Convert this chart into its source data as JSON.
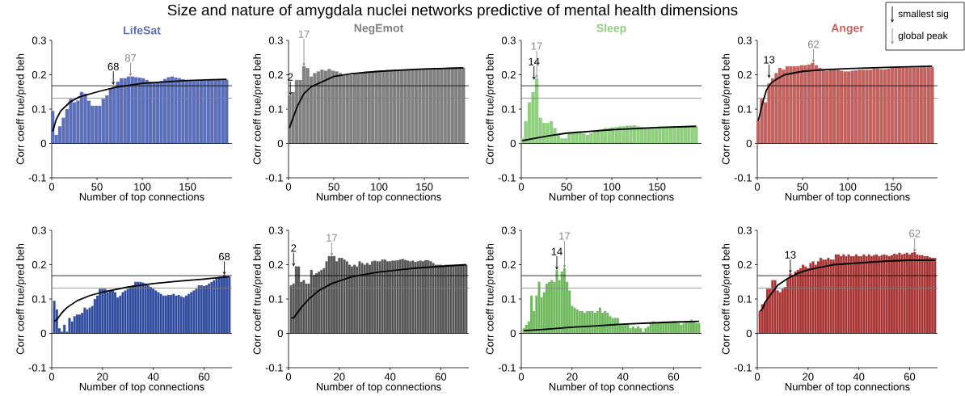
{
  "chart_data": [
    {
      "type": "bar",
      "title": "LifeSat",
      "xlabel": "Number of top connections",
      "ylabel": "Corr coeff true/pred beh",
      "x": [
        1,
        5,
        9,
        13,
        17,
        21,
        25,
        29,
        33,
        37,
        41,
        45,
        49,
        53,
        57,
        61,
        65,
        69,
        73,
        77,
        81,
        85,
        89,
        93,
        97,
        101,
        105,
        109,
        113,
        117,
        121,
        125,
        129,
        133,
        137,
        141,
        145,
        149,
        153,
        157,
        161,
        165,
        169,
        173,
        177,
        181,
        185,
        189,
        193
      ],
      "xlim": [
        0,
        199
      ],
      "xticks": [
        0,
        50,
        100,
        150
      ],
      "ylim": [
        -0.1,
        0.3
      ],
      "yticks": [
        -0.1,
        0,
        0.1,
        0.2,
        0.3
      ],
      "series": [
        {
          "color": "#5b6eb8",
          "values": [
            0.095,
            0.025,
            0.05,
            0.075,
            0.1,
            0.13,
            0.12,
            0.125,
            0.15,
            0.145,
            0.125,
            0.11,
            0.11,
            0.11,
            0.13,
            0.14,
            0.16,
            0.165,
            0.18,
            0.19,
            0.19,
            0.195,
            0.195,
            0.193,
            0.192,
            0.19,
            0.185,
            0.18,
            0.178,
            0.18,
            0.182,
            0.188,
            0.193,
            0.195,
            0.192,
            0.19,
            0.187,
            0.185,
            0.183,
            0.182,
            0.182,
            0.183,
            0.184,
            0.185,
            0.186,
            0.186,
            0.186,
            0.186,
            0.186
          ]
        },
        {
          "type": "line",
          "color": "#000000",
          "x": [
            1,
            5,
            10,
            20,
            30,
            50,
            70,
            100,
            150,
            193
          ],
          "values": [
            0.035,
            0.07,
            0.095,
            0.12,
            0.135,
            0.15,
            0.163,
            0.175,
            0.183,
            0.187
          ]
        }
      ],
      "ref_lines": [
        {
          "axis": "y",
          "value": 0,
          "color": "#000000"
        },
        {
          "axis": "y",
          "value": 0.168,
          "color": "#000000"
        },
        {
          "axis": "y",
          "value": 0.132,
          "color": "#808080"
        }
      ],
      "annotations": [
        "Size and nature of amygdala nuclei networks predictive of mental health dimensions",
        {
          "text": "68",
          "x": 68,
          "y": 0.17
        },
        {
          "text": "87",
          "x": 87,
          "y": 0.195
        }
      ]
    },
    {
      "type": "bar",
      "title": "NegEmot",
      "xlabel": "Number of top connections",
      "ylabel": "Corr coeff true/pred beh",
      "x": [
        1,
        5,
        9,
        13,
        17,
        21,
        25,
        29,
        33,
        37,
        41,
        45,
        49,
        53,
        57,
        61,
        65,
        69,
        73,
        77,
        81,
        85,
        89,
        93,
        97,
        101,
        105,
        109,
        113,
        117,
        121,
        125,
        129,
        133,
        137,
        141,
        145,
        149,
        153,
        157,
        161,
        165,
        169,
        173,
        177,
        181,
        185,
        189,
        193
      ],
      "xlim": [
        0,
        199
      ],
      "xticks": [
        0,
        50,
        100,
        150
      ],
      "ylim": [
        -0.1,
        0.3
      ],
      "yticks": [
        -0.1,
        0,
        0.1,
        0.2,
        0.3
      ],
      "series": [
        {
          "color": "#808080",
          "values": [
            0.14,
            0.15,
            0.185,
            0.185,
            0.225,
            0.22,
            0.195,
            0.205,
            0.21,
            0.215,
            0.212,
            0.217,
            0.212,
            0.21,
            0.205,
            0.198,
            0.2,
            0.2,
            0.205,
            0.205,
            0.208,
            0.21,
            0.21,
            0.21,
            0.212,
            0.212,
            0.213,
            0.214,
            0.214,
            0.215,
            0.215,
            0.216,
            0.216,
            0.217,
            0.217,
            0.218,
            0.218,
            0.218,
            0.219,
            0.219,
            0.22,
            0.22,
            0.22,
            0.22,
            0.221,
            0.221,
            0.221,
            0.221,
            0.221
          ]
        },
        {
          "type": "line",
          "color": "#000000",
          "x": [
            1,
            5,
            10,
            17,
            25,
            50,
            70,
            100,
            150,
            193
          ],
          "values": [
            0.045,
            0.075,
            0.11,
            0.145,
            0.165,
            0.195,
            0.203,
            0.21,
            0.217,
            0.22
          ]
        }
      ],
      "ref_lines": [
        {
          "axis": "y",
          "value": 0,
          "color": "#000000"
        },
        {
          "axis": "y",
          "value": 0.168,
          "color": "#000000"
        },
        {
          "axis": "y",
          "value": 0.132,
          "color": "#808080"
        }
      ],
      "annotations": [
        {
          "text": "2",
          "x": 2,
          "y": 0.14
        },
        {
          "text": "17",
          "x": 17,
          "y": 0.225
        }
      ]
    },
    {
      "type": "bar",
      "title": "Sleep",
      "xlabel": "Number of top connections",
      "ylabel": "Corr coeff true/pred beh",
      "x": [
        1,
        5,
        9,
        13,
        17,
        21,
        25,
        29,
        33,
        37,
        41,
        45,
        49,
        53,
        57,
        61,
        65,
        69,
        73,
        77,
        81,
        85,
        89,
        93,
        97,
        101,
        105,
        109,
        113,
        117,
        121,
        125,
        129,
        133,
        137,
        141,
        145,
        149,
        153,
        157,
        161,
        165,
        169,
        173,
        177,
        181,
        185,
        189,
        193
      ],
      "xlim": [
        0,
        199
      ],
      "xticks": [
        0,
        50,
        100,
        150
      ],
      "ylim": [
        -0.1,
        0.3
      ],
      "yticks": [
        -0.1,
        0,
        0.1,
        0.2,
        0.3
      ],
      "series": [
        {
          "color": "#8fcf7e",
          "values": [
            0.015,
            0.065,
            0.12,
            0.15,
            0.19,
            0.075,
            0.06,
            0.06,
            0.065,
            0.045,
            0.025,
            0.015,
            0.015,
            0.03,
            0.032,
            0.035,
            0.035,
            0.03,
            0.025,
            0.03,
            0.035,
            0.04,
            0.042,
            0.045,
            0.045,
            0.047,
            0.048,
            0.05,
            0.05,
            0.052,
            0.052,
            0.053,
            0.05,
            0.048,
            0.047,
            0.047,
            0.048,
            0.048,
            0.05,
            0.05,
            0.05,
            0.05,
            0.05,
            0.05,
            0.05,
            0.05,
            0.05,
            0.05,
            0.05
          ]
        },
        {
          "type": "line",
          "color": "#000000",
          "x": [
            1,
            5,
            15,
            30,
            50,
            75,
            100,
            150,
            193
          ],
          "values": [
            0.008,
            0.01,
            0.015,
            0.022,
            0.03,
            0.035,
            0.04,
            0.046,
            0.05
          ]
        }
      ],
      "ref_lines": [
        {
          "axis": "y",
          "value": 0,
          "color": "#000000"
        },
        {
          "axis": "y",
          "value": 0.168,
          "color": "#000000"
        },
        {
          "axis": "y",
          "value": 0.132,
          "color": "#808080"
        }
      ],
      "annotations": [
        {
          "text": "14",
          "x": 14,
          "y": 0.185
        },
        {
          "text": "17",
          "x": 17,
          "y": 0.19
        }
      ]
    },
    {
      "type": "bar",
      "title": "Anger",
      "xlabel": "Number of top connections",
      "ylabel": "Corr coeff true/pred beh",
      "x": [
        1,
        5,
        9,
        13,
        17,
        21,
        25,
        29,
        33,
        37,
        41,
        45,
        49,
        53,
        57,
        61,
        65,
        69,
        73,
        77,
        81,
        85,
        89,
        93,
        97,
        101,
        105,
        109,
        113,
        117,
        121,
        125,
        129,
        133,
        137,
        141,
        145,
        149,
        153,
        157,
        161,
        165,
        169,
        173,
        177,
        181,
        185,
        189,
        193
      ],
      "xlim": [
        0,
        199
      ],
      "xticks": [
        0,
        50,
        100,
        150
      ],
      "ylim": [
        -0.1,
        0.3
      ],
      "yticks": [
        -0.1,
        0,
        0.1,
        0.2,
        0.3
      ],
      "series": [
        {
          "color": "#c2625f",
          "values": [
            0.065,
            0.13,
            0.12,
            0.175,
            0.19,
            0.205,
            0.22,
            0.215,
            0.225,
            0.225,
            0.225,
            0.225,
            0.228,
            0.228,
            0.23,
            0.235,
            0.228,
            0.22,
            0.215,
            0.212,
            0.215,
            0.215,
            0.215,
            0.212,
            0.21,
            0.21,
            0.212,
            0.213,
            0.215,
            0.215,
            0.215,
            0.215,
            0.218,
            0.218,
            0.216,
            0.216,
            0.218,
            0.22,
            0.222,
            0.222,
            0.222,
            0.222,
            0.222,
            0.222,
            0.222,
            0.223,
            0.223,
            0.223,
            0.223
          ]
        },
        {
          "type": "line",
          "color": "#000000",
          "x": [
            1,
            5,
            10,
            15,
            20,
            30,
            50,
            75,
            100,
            150,
            193
          ],
          "values": [
            0.065,
            0.11,
            0.155,
            0.175,
            0.185,
            0.2,
            0.21,
            0.215,
            0.218,
            0.222,
            0.225
          ]
        }
      ],
      "ref_lines": [
        {
          "axis": "y",
          "value": 0,
          "color": "#000000"
        },
        {
          "axis": "y",
          "value": 0.168,
          "color": "#000000"
        },
        {
          "axis": "y",
          "value": 0.132,
          "color": "#808080"
        }
      ],
      "annotations": [
        "smallest sig",
        "global peak",
        {
          "text": "13",
          "x": 13,
          "y": 0.19
        },
        {
          "text": "62",
          "x": 62,
          "y": 0.235
        }
      ]
    },
    {
      "type": "bar",
      "xlabel": "Number of top connections",
      "ylabel": "Corr coeff true/pred beh",
      "x": [
        1,
        2,
        3,
        4,
        5,
        6,
        7,
        8,
        9,
        10,
        11,
        12,
        13,
        14,
        15,
        16,
        17,
        18,
        19,
        20,
        21,
        22,
        23,
        24,
        25,
        26,
        27,
        28,
        29,
        30,
        31,
        32,
        33,
        34,
        35,
        36,
        37,
        38,
        39,
        40,
        41,
        42,
        43,
        44,
        45,
        46,
        47,
        48,
        49,
        50,
        51,
        52,
        53,
        54,
        55,
        56,
        57,
        58,
        59,
        60,
        61,
        62,
        63,
        64,
        65,
        66,
        67,
        68,
        69,
        70
      ],
      "xlim": [
        0,
        71
      ],
      "xticks": [
        0,
        20,
        40,
        60
      ],
      "ylim": [
        -0.1,
        0.3
      ],
      "yticks": [
        -0.1,
        0,
        0.1,
        0.2,
        0.3
      ],
      "series": [
        {
          "color": "#2f4a9e",
          "values": [
            0.095,
            0.07,
            0.015,
            0.005,
            0.025,
            0.005,
            0.045,
            0.035,
            0.05,
            0.055,
            0.055,
            0.06,
            0.075,
            0.07,
            0.075,
            0.08,
            0.1,
            0.11,
            0.13,
            0.13,
            0.13,
            0.12,
            0.125,
            0.125,
            0.12,
            0.105,
            0.11,
            0.12,
            0.125,
            0.13,
            0.135,
            0.14,
            0.15,
            0.15,
            0.15,
            0.148,
            0.145,
            0.14,
            0.135,
            0.13,
            0.125,
            0.12,
            0.115,
            0.11,
            0.11,
            0.112,
            0.112,
            0.115,
            0.11,
            0.112,
            0.108,
            0.105,
            0.11,
            0.115,
            0.12,
            0.125,
            0.13,
            0.14,
            0.14,
            0.138,
            0.14,
            0.145,
            0.15,
            0.155,
            0.16,
            0.165,
            0.165,
            0.17,
            0.165,
            0.165
          ]
        },
        {
          "type": "line",
          "color": "#000000",
          "x": [
            1,
            2,
            4,
            6,
            10,
            15,
            20,
            30,
            40,
            50,
            60,
            70
          ],
          "values": [
            0.035,
            0.04,
            0.06,
            0.075,
            0.095,
            0.11,
            0.12,
            0.135,
            0.145,
            0.152,
            0.158,
            0.165
          ]
        }
      ],
      "ref_lines": [
        {
          "axis": "y",
          "value": 0,
          "color": "#000000"
        },
        {
          "axis": "y",
          "value": 0.168,
          "color": "#000000"
        },
        {
          "axis": "y",
          "value": 0.132,
          "color": "#808080"
        }
      ],
      "annotations": [
        {
          "text": "68",
          "x": 68,
          "y": 0.17
        }
      ]
    },
    {
      "type": "bar",
      "xlabel": "Number of top connections",
      "ylabel": "Corr coeff true/pred beh",
      "x": [
        1,
        2,
        3,
        4,
        5,
        6,
        7,
        8,
        9,
        10,
        11,
        12,
        13,
        14,
        15,
        16,
        17,
        18,
        19,
        20,
        21,
        22,
        23,
        24,
        25,
        26,
        27,
        28,
        29,
        30,
        31,
        32,
        33,
        34,
        35,
        36,
        37,
        38,
        39,
        40,
        41,
        42,
        43,
        44,
        45,
        46,
        47,
        48,
        49,
        50,
        51,
        52,
        53,
        54,
        55,
        56,
        57,
        58,
        59,
        60,
        61,
        62,
        63,
        64,
        65,
        66,
        67,
        68,
        69,
        70
      ],
      "xlim": [
        0,
        71
      ],
      "xticks": [
        0,
        20,
        40,
        60
      ],
      "ylim": [
        -0.1,
        0.3
      ],
      "yticks": [
        -0.1,
        0,
        0.1,
        0.2,
        0.3
      ],
      "series": [
        {
          "color": "#555555",
          "values": [
            0.14,
            0.145,
            0.195,
            0.195,
            0.15,
            0.155,
            0.145,
            0.145,
            0.185,
            0.17,
            0.175,
            0.18,
            0.185,
            0.19,
            0.21,
            0.225,
            0.225,
            0.225,
            0.21,
            0.22,
            0.22,
            0.215,
            0.21,
            0.2,
            0.195,
            0.2,
            0.195,
            0.21,
            0.205,
            0.2,
            0.205,
            0.2,
            0.21,
            0.212,
            0.21,
            0.21,
            0.215,
            0.215,
            0.21,
            0.21,
            0.212,
            0.212,
            0.213,
            0.215,
            0.217,
            0.214,
            0.212,
            0.21,
            0.212,
            0.208,
            0.21,
            0.212,
            0.21,
            0.213,
            0.213,
            0.21,
            0.205,
            0.2,
            0.2,
            0.2,
            0.198,
            0.2,
            0.2,
            0.2,
            0.2,
            0.2,
            0.2,
            0.2,
            0.2,
            0.2
          ]
        },
        {
          "type": "line",
          "color": "#000000",
          "x": [
            1,
            2,
            3,
            5,
            8,
            12,
            17,
            25,
            35,
            50,
            70
          ],
          "values": [
            0.045,
            0.045,
            0.055,
            0.075,
            0.1,
            0.125,
            0.145,
            0.165,
            0.178,
            0.19,
            0.2
          ]
        }
      ],
      "ref_lines": [
        {
          "axis": "y",
          "value": 0,
          "color": "#000000"
        },
        {
          "axis": "y",
          "value": 0.168,
          "color": "#000000"
        },
        {
          "axis": "y",
          "value": 0.132,
          "color": "#808080"
        }
      ],
      "annotations": [
        {
          "text": "2",
          "x": 2,
          "y": 0.195
        },
        {
          "text": "17",
          "x": 17,
          "y": 0.225
        }
      ]
    },
    {
      "type": "bar",
      "xlabel": "Number of top connections",
      "ylabel": "Corr coeff true/pred beh",
      "x": [
        1,
        2,
        3,
        4,
        5,
        6,
        7,
        8,
        9,
        10,
        11,
        12,
        13,
        14,
        15,
        16,
        17,
        18,
        19,
        20,
        21,
        22,
        23,
        24,
        25,
        26,
        27,
        28,
        29,
        30,
        31,
        32,
        33,
        34,
        35,
        36,
        37,
        38,
        39,
        40,
        41,
        42,
        43,
        44,
        45,
        46,
        47,
        48,
        49,
        50,
        51,
        52,
        53,
        54,
        55,
        56,
        57,
        58,
        59,
        60,
        61,
        62,
        63,
        64,
        65,
        66,
        67,
        68,
        69,
        70
      ],
      "xlim": [
        0,
        71
      ],
      "xticks": [
        0,
        20,
        40,
        60
      ],
      "ylim": [
        -0.1,
        0.3
      ],
      "yticks": [
        -0.1,
        0,
        0.1,
        0.2,
        0.3
      ],
      "series": [
        {
          "color": "#6cb85a",
          "values": [
            0.015,
            0.025,
            0.035,
            0.11,
            0.065,
            0.11,
            0.15,
            0.105,
            0.12,
            0.145,
            0.15,
            0.155,
            0.15,
            0.185,
            0.155,
            0.18,
            0.19,
            0.15,
            0.125,
            0.08,
            0.075,
            0.07,
            0.065,
            0.065,
            0.06,
            0.065,
            0.065,
            0.065,
            0.06,
            0.065,
            0.075,
            0.06,
            0.065,
            0.06,
            0.05,
            0.045,
            0.045,
            0.045,
            0.025,
            0.025,
            0.025,
            0.025,
            0.015,
            0.02,
            0.015,
            0.02,
            0.015,
            0.005,
            0.015,
            0.02,
            0.03,
            0.035,
            0.03,
            0.03,
            0.033,
            0.035,
            0.032,
            0.035,
            0.033,
            0.035,
            0.035,
            0.03,
            0.025,
            0.03,
            0.035,
            0.035,
            0.04,
            0.035,
            0.03,
            0.03
          ]
        },
        {
          "type": "line",
          "color": "#000000",
          "x": [
            1,
            10,
            20,
            30,
            40,
            50,
            60,
            70
          ],
          "values": [
            0.008,
            0.012,
            0.018,
            0.022,
            0.027,
            0.03,
            0.033,
            0.035
          ]
        }
      ],
      "ref_lines": [
        {
          "axis": "y",
          "value": 0,
          "color": "#000000"
        },
        {
          "axis": "y",
          "value": 0.168,
          "color": "#000000"
        },
        {
          "axis": "y",
          "value": 0.132,
          "color": "#808080"
        }
      ],
      "annotations": [
        {
          "text": "14",
          "x": 14,
          "y": 0.185
        },
        {
          "text": "17",
          "x": 17,
          "y": 0.19
        }
      ]
    },
    {
      "type": "bar",
      "xlabel": "Number of top connections",
      "ylabel": "Corr coeff true/pred beh",
      "x": [
        1,
        2,
        3,
        4,
        5,
        6,
        7,
        8,
        9,
        10,
        11,
        12,
        13,
        14,
        15,
        16,
        17,
        18,
        19,
        20,
        21,
        22,
        23,
        24,
        25,
        26,
        27,
        28,
        29,
        30,
        31,
        32,
        33,
        34,
        35,
        36,
        37,
        38,
        39,
        40,
        41,
        42,
        43,
        44,
        45,
        46,
        47,
        48,
        49,
        50,
        51,
        52,
        53,
        54,
        55,
        56,
        57,
        58,
        59,
        60,
        61,
        62,
        63,
        64,
        65,
        66,
        67,
        68,
        69,
        70
      ],
      "xlim": [
        0,
        71
      ],
      "xticks": [
        0,
        20,
        40,
        60
      ],
      "ylim": [
        -0.1,
        0.3
      ],
      "yticks": [
        -0.1,
        0,
        0.1,
        0.2,
        0.3
      ],
      "series": [
        {
          "color": "#a83333",
          "values": [
            0.065,
            0.085,
            0.09,
            0.13,
            0.13,
            0.155,
            0.155,
            0.125,
            0.12,
            0.13,
            0.135,
            0.16,
            0.175,
            0.17,
            0.18,
            0.185,
            0.19,
            0.2,
            0.195,
            0.19,
            0.205,
            0.21,
            0.2,
            0.21,
            0.22,
            0.215,
            0.215,
            0.22,
            0.215,
            0.215,
            0.23,
            0.23,
            0.225,
            0.23,
            0.225,
            0.23,
            0.225,
            0.225,
            0.23,
            0.225,
            0.225,
            0.23,
            0.225,
            0.23,
            0.225,
            0.228,
            0.23,
            0.225,
            0.228,
            0.23,
            0.228,
            0.225,
            0.228,
            0.232,
            0.23,
            0.235,
            0.23,
            0.232,
            0.235,
            0.23,
            0.235,
            0.237,
            0.23,
            0.228,
            0.228,
            0.225,
            0.225,
            0.222,
            0.22,
            0.22
          ]
        },
        {
          "type": "line",
          "color": "#000000",
          "x": [
            1,
            2,
            3,
            5,
            8,
            12,
            16,
            20,
            30,
            40,
            50,
            60,
            70
          ],
          "values": [
            0.065,
            0.07,
            0.09,
            0.11,
            0.14,
            0.16,
            0.175,
            0.185,
            0.2,
            0.205,
            0.21,
            0.213,
            0.213
          ]
        }
      ],
      "ref_lines": [
        {
          "axis": "y",
          "value": 0,
          "color": "#000000"
        },
        {
          "axis": "y",
          "value": 0.168,
          "color": "#000000"
        },
        {
          "axis": "y",
          "value": 0.132,
          "color": "#808080"
        }
      ],
      "annotations": [
        {
          "text": "13",
          "x": 13,
          "y": 0.175
        },
        {
          "text": "62",
          "x": 62,
          "y": 0.237
        }
      ]
    }
  ]
}
